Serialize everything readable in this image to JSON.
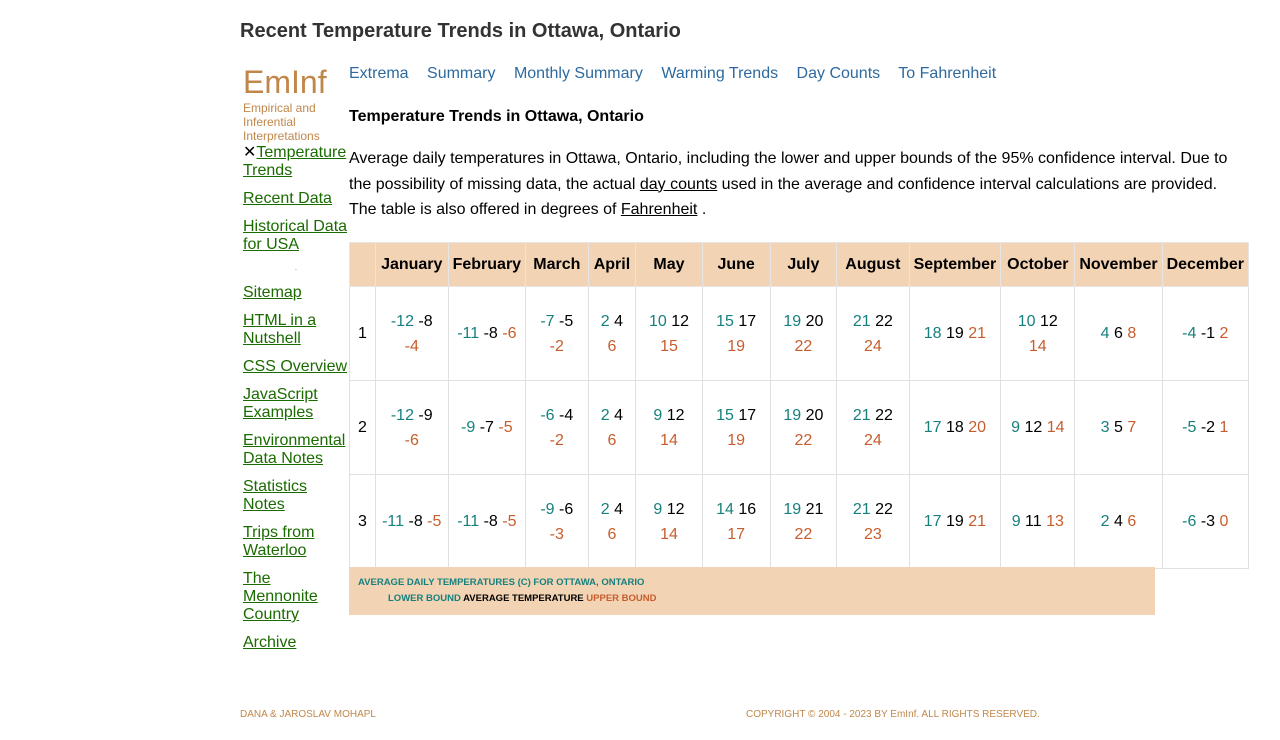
{
  "page_title": "Recent Temperature Trends in Ottawa, Ontario",
  "logo": {
    "name": "EmInf",
    "subtitle": "Empirical and Inferential Interpretations"
  },
  "sidebar": {
    "current_item": "Temperature Trends",
    "items": [
      {
        "label": "Recent Data"
      },
      {
        "label": "Historical Data for USA"
      },
      {
        "label": "Sitemap"
      },
      {
        "label": "HTML in a Nutshell"
      },
      {
        "label": "CSS Overview"
      },
      {
        "label": "JavaScript Examples"
      },
      {
        "label": "Environmental Data Notes"
      },
      {
        "label": "Statistics Notes"
      },
      {
        "label": "Trips from Waterloo"
      },
      {
        "label": "The Mennonite Country"
      },
      {
        "label": "Archive"
      }
    ]
  },
  "topnav": [
    "Extrema",
    "Summary",
    "Monthly Summary",
    "Warming Trends",
    "Day Counts",
    "To Fahrenheit"
  ],
  "section_title": "Temperature Trends in Ottawa, Ontario",
  "intro": {
    "part1": "Average daily temperatures in Ottawa, Ontario, including the lower and upper bounds of the 95% confidence interval. Due to the possibility of missing data, the actual ",
    "link1": "day counts",
    "part2": " used in the average and confidence interval calculations are provided. The table is also offered in degrees of ",
    "link2": "Fahrenheit",
    "part3": " ."
  },
  "table": {
    "months": [
      "January",
      "February",
      "March",
      "April",
      "May",
      "June",
      "July",
      "August",
      "September",
      "October",
      "November",
      "December"
    ],
    "rows": [
      {
        "day": "1",
        "cells": [
          [
            "-12",
            "-8",
            "-4"
          ],
          [
            "-11",
            "-8",
            "-6"
          ],
          [
            "-7",
            "-5",
            "-2"
          ],
          [
            "2",
            "4",
            "6"
          ],
          [
            "10",
            "12",
            "15"
          ],
          [
            "15",
            "17",
            "19"
          ],
          [
            "19",
            "20",
            "22"
          ],
          [
            "21",
            "22",
            "24"
          ],
          [
            "18",
            "19",
            "21"
          ],
          [
            "10",
            "12",
            "14"
          ],
          [
            "4",
            "6",
            "8"
          ],
          [
            "-4",
            "-1",
            "2"
          ]
        ]
      },
      {
        "day": "2",
        "cells": [
          [
            "-12",
            "-9",
            "-6"
          ],
          [
            "-9",
            "-7",
            "-5"
          ],
          [
            "-6",
            "-4",
            "-2"
          ],
          [
            "2",
            "4",
            "6"
          ],
          [
            "9",
            "12",
            "14"
          ],
          [
            "15",
            "17",
            "19"
          ],
          [
            "19",
            "20",
            "22"
          ],
          [
            "21",
            "22",
            "24"
          ],
          [
            "17",
            "18",
            "20"
          ],
          [
            "9",
            "12",
            "14"
          ],
          [
            "3",
            "5",
            "7"
          ],
          [
            "-5",
            "-2",
            "1"
          ]
        ]
      },
      {
        "day": "3",
        "cells": [
          [
            "-11",
            "-8",
            "-5"
          ],
          [
            "-11",
            "-8",
            "-5"
          ],
          [
            "-9",
            "-6",
            "-3"
          ],
          [
            "2",
            "4",
            "6"
          ],
          [
            "9",
            "12",
            "14"
          ],
          [
            "14",
            "16",
            "17"
          ],
          [
            "19",
            "21",
            "22"
          ],
          [
            "21",
            "22",
            "23"
          ],
          [
            "17",
            "19",
            "21"
          ],
          [
            "9",
            "11",
            "13"
          ],
          [
            "2",
            "4",
            "6"
          ],
          [
            "-6",
            "-3",
            "0"
          ]
        ]
      }
    ]
  },
  "caption": {
    "title": "AVERAGE DAILY TEMPERATURES (C) FOR OTTAWA, ONTARIO",
    "lower": "LOWER BOUND",
    "average": "AVERAGE TEMPERATURE",
    "upper": "UPPER BOUND"
  },
  "footer": {
    "left": "DANA & JAROSLAV MOHAPL",
    "right": "COPYRIGHT © 2004 - 2023 BY EmInf. ALL RIGHTS RESERVED."
  },
  "colors": {
    "lower": "#16807e",
    "average": "#000000",
    "upper": "#c75d2c",
    "header_bg": "#f2d3b4",
    "link_green": "#1a6b00",
    "link_blue": "#2d6a9f",
    "brand": "#c0874a"
  }
}
